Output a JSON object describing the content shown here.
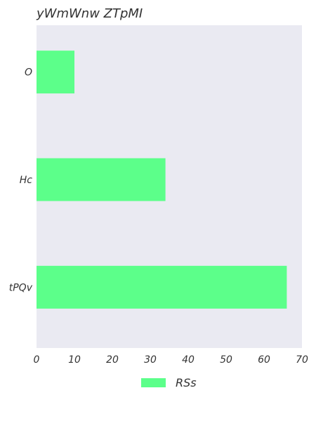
{
  "chart_data": {
    "type": "bar",
    "orientation": "horizontal",
    "title": "yWmWnw ZTpMI",
    "xlabel": "",
    "ylabel": "",
    "categories": [
      "O",
      "Hc",
      "tPQv"
    ],
    "series": [
      {
        "name": "RSs",
        "values": [
          10,
          34,
          66
        ],
        "color": "#5cff8a"
      }
    ],
    "xlim": [
      0,
      70
    ],
    "xticks": [
      "0",
      "10",
      "20",
      "30",
      "40",
      "50",
      "60",
      "70"
    ],
    "grid": false,
    "legend_position": "bottom-center",
    "background_color": "#eaeaf2"
  }
}
